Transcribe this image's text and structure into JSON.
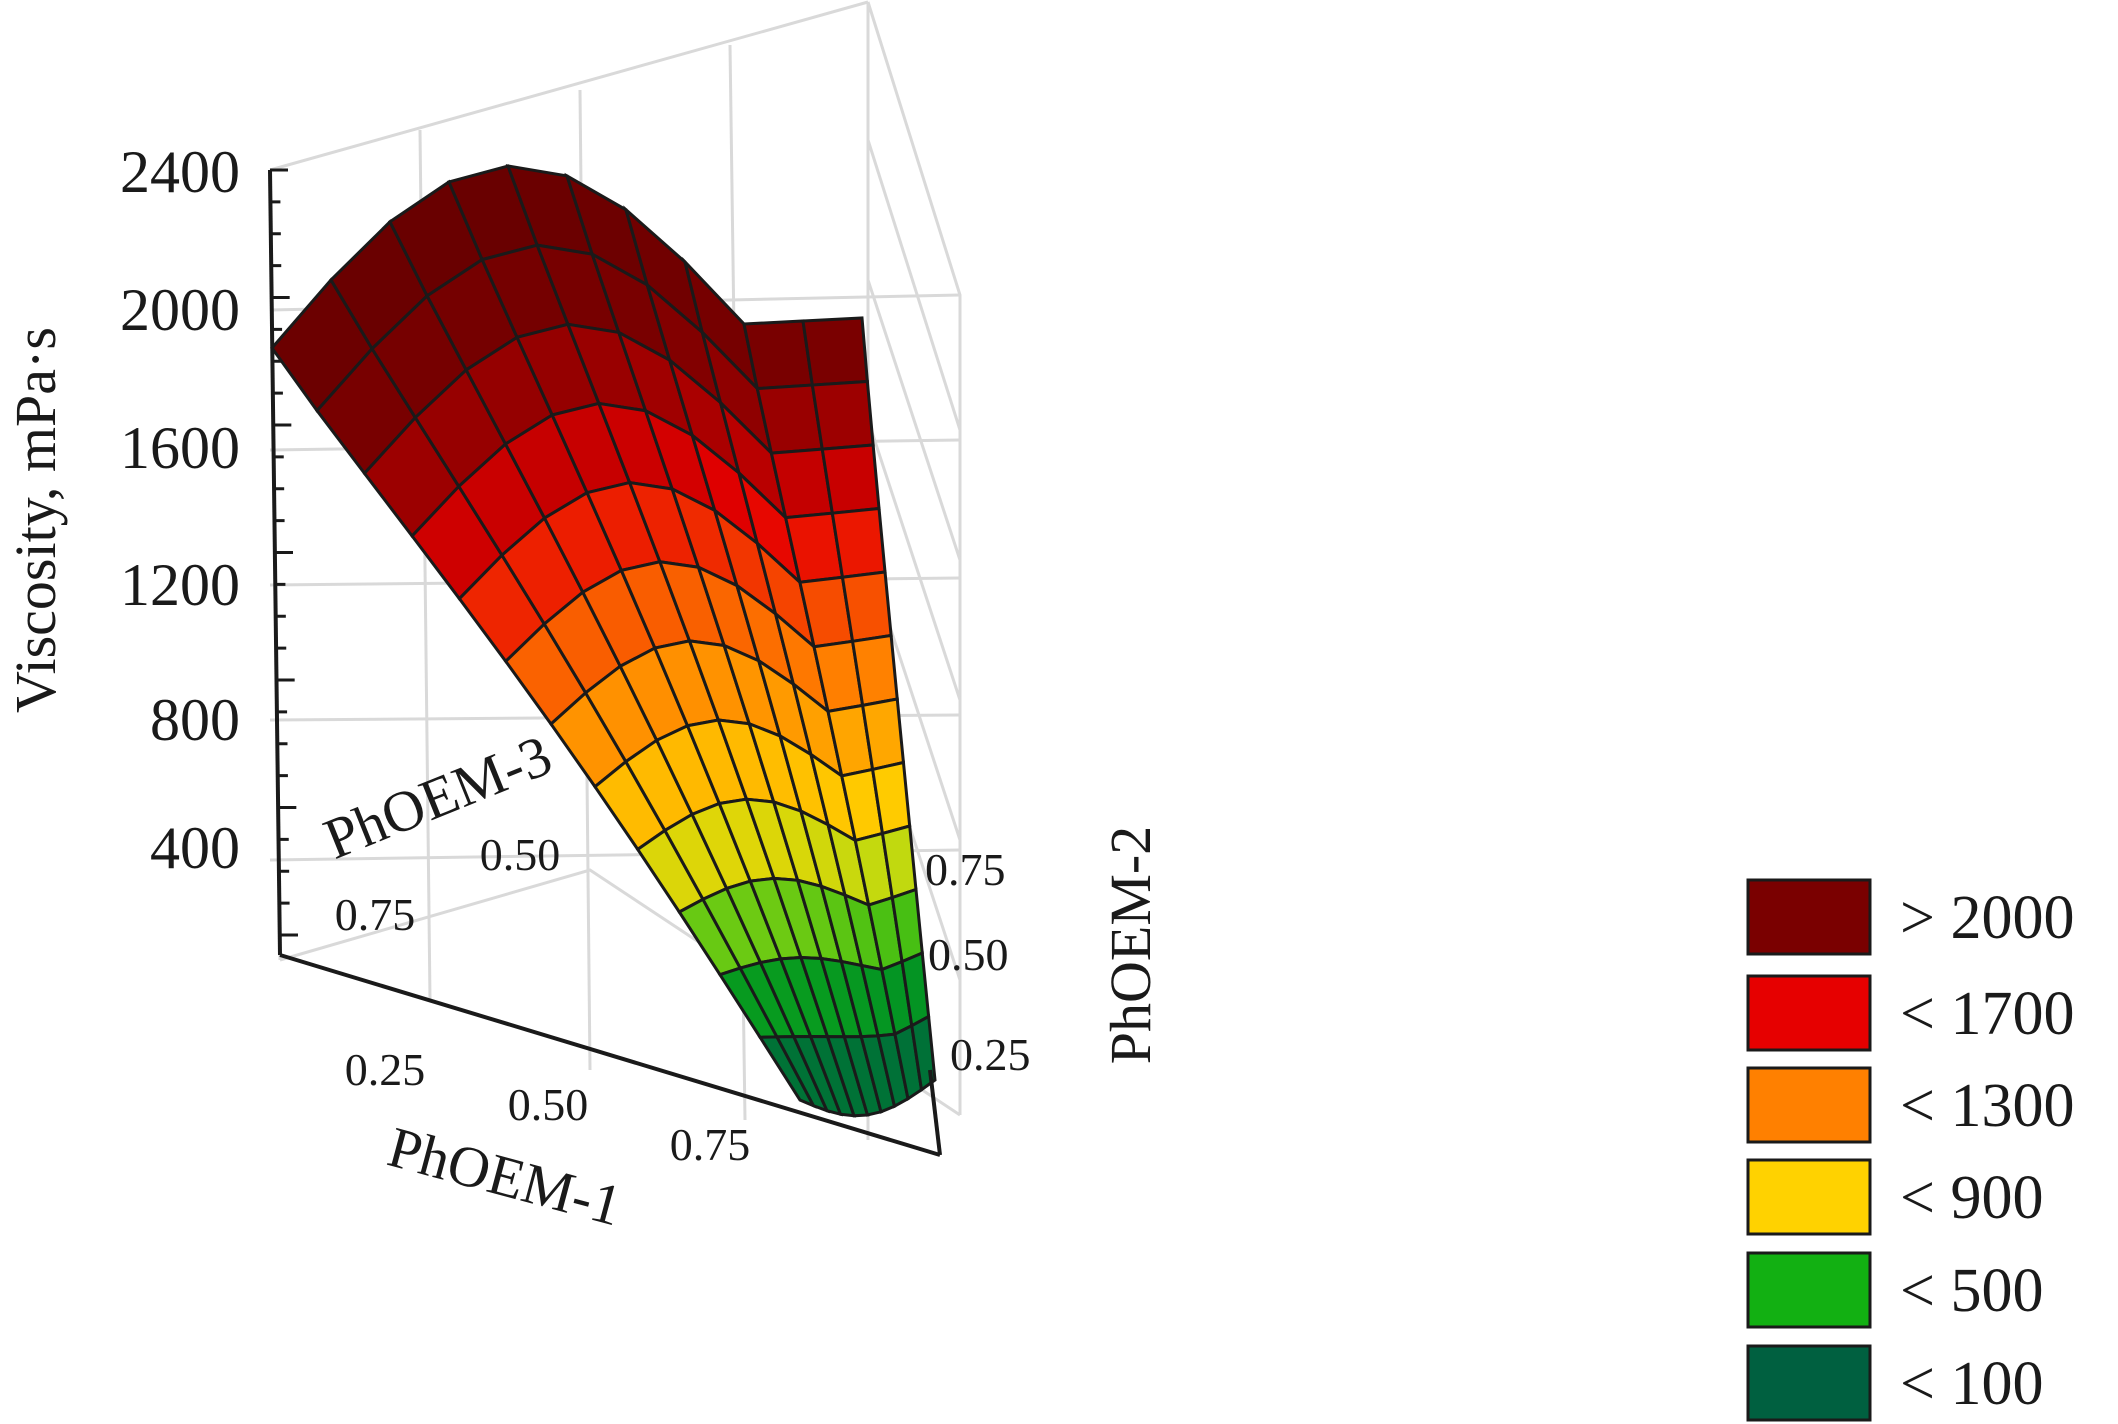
{
  "chart_data": {
    "type": "surface3d",
    "z_axis": {
      "label": "Viscosity, mPa·s",
      "ticks": [
        "2400",
        "2000",
        "1600",
        "1200",
        "800",
        "400"
      ],
      "tick_values": [
        2400,
        2000,
        1600,
        1200,
        800,
        400
      ]
    },
    "x_axis": {
      "label": "PhOEM-1",
      "ticks": [
        "0.25",
        "0.50",
        "0.75"
      ]
    },
    "y_axis": {
      "label": "PhOEM-2",
      "ticks": [
        "0.75",
        "0.50",
        "0.25"
      ]
    },
    "w_axis": {
      "label": "PhOEM-3",
      "ticks": [
        "0.50",
        "0.75"
      ]
    },
    "legend": {
      "position": "bottom-right",
      "items": [
        {
          "label": "> 2000",
          "color": "#7a0000"
        },
        {
          "label": "< 1700",
          "color": "#e60000"
        },
        {
          "label": "< 1300",
          "color": "#ff8000"
        },
        {
          "label": "< 900",
          "color": "#ffd200"
        },
        {
          "label": "< 500",
          "color": "#12b012"
        },
        {
          "label": "< 100",
          "color": "#006040"
        }
      ]
    },
    "surface": {
      "description_values": "Viscosity over the mixture simplex; maximum ~2350 near PhOEM-3 rich corner, minimum ~100 near PhOEM-1/PhOEM-2 edge",
      "max_value": 2350,
      "min_value": 100
    },
    "grid": true
  }
}
